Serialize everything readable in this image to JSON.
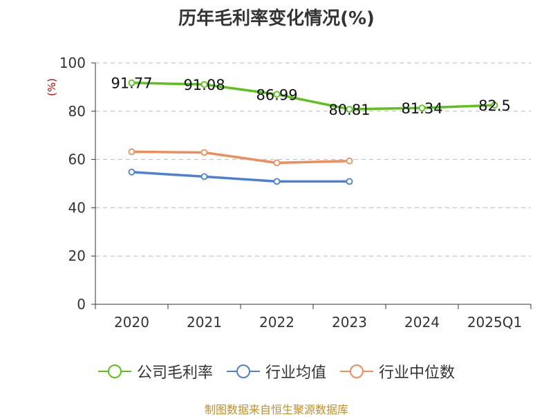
{
  "colors": {
    "company": "#5cc21a",
    "industry_avg": "#4c7fd6",
    "industry_median": "#f08c5a",
    "ylabel": "#cc0000",
    "grid": "#bbbbbb",
    "axis": "#333333",
    "source": "#c28f2c"
  },
  "chart_data": {
    "type": "line",
    "title": "历年毛利率变化情况(%)",
    "ylabel": "(%)",
    "xlabel": "",
    "categories": [
      "2020",
      "2021",
      "2022",
      "2023",
      "2024",
      "2025Q1"
    ],
    "ylim": [
      0,
      100
    ],
    "yticks": [
      "0",
      "20",
      "40",
      "60",
      "80",
      "100"
    ],
    "grid": true,
    "legend_position": "bottom",
    "series": [
      {
        "name": "公司毛利率",
        "key": "company",
        "values": [
          91.77,
          91.08,
          86.99,
          80.81,
          81.34,
          82.5
        ],
        "labels": [
          "91.77",
          "91.08",
          "86.99",
          "80.81",
          "81.34",
          "82.5"
        ]
      },
      {
        "name": "行业均值",
        "key": "industry_avg",
        "values": [
          54.8,
          52.9,
          50.9,
          50.9,
          null,
          null
        ]
      },
      {
        "name": "行业中位数",
        "key": "industry_median",
        "values": [
          63.2,
          62.9,
          58.6,
          59.4,
          null,
          null
        ]
      }
    ]
  },
  "source_note": "制图数据来自恒生聚源数据库"
}
